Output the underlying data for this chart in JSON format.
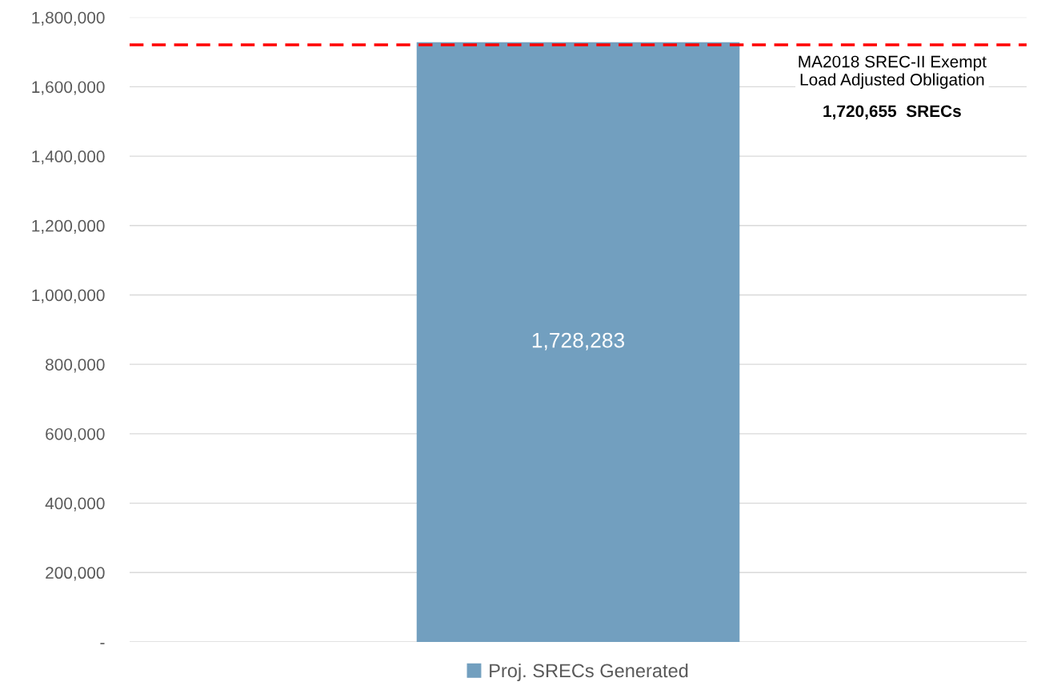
{
  "chart_data": {
    "type": "bar",
    "categories": [
      null
    ],
    "series": [
      {
        "name": "Proj. SRECs Generated",
        "color": "#729fbf",
        "values": [
          1728283
        ],
        "value_labels": [
          "1,728,283"
        ]
      }
    ],
    "ylim": [
      0,
      1800000
    ],
    "yticks": [
      {
        "value": 0,
        "label": "-"
      },
      {
        "value": 200000,
        "label": "200,000"
      },
      {
        "value": 400000,
        "label": "400,000"
      },
      {
        "value": 600000,
        "label": "600,000"
      },
      {
        "value": 800000,
        "label": "800,000"
      },
      {
        "value": 1000000,
        "label": "1,000,000"
      },
      {
        "value": 1200000,
        "label": "1,200,000"
      },
      {
        "value": 1400000,
        "label": "1,400,000"
      },
      {
        "value": 1600000,
        "label": "1,600,000"
      },
      {
        "value": 1800000,
        "label": "1,800,000"
      }
    ],
    "ref_lines": [
      {
        "axis": "y",
        "value": 1720655,
        "label": "MA2018 SREC-II Exempt\nLoad Adjusted Obligation",
        "color": "#ff0000",
        "line_style": "dashed"
      }
    ],
    "annotations": [
      "1,720,655  SRECs"
    ],
    "grid": "y",
    "legend": "bottom"
  }
}
